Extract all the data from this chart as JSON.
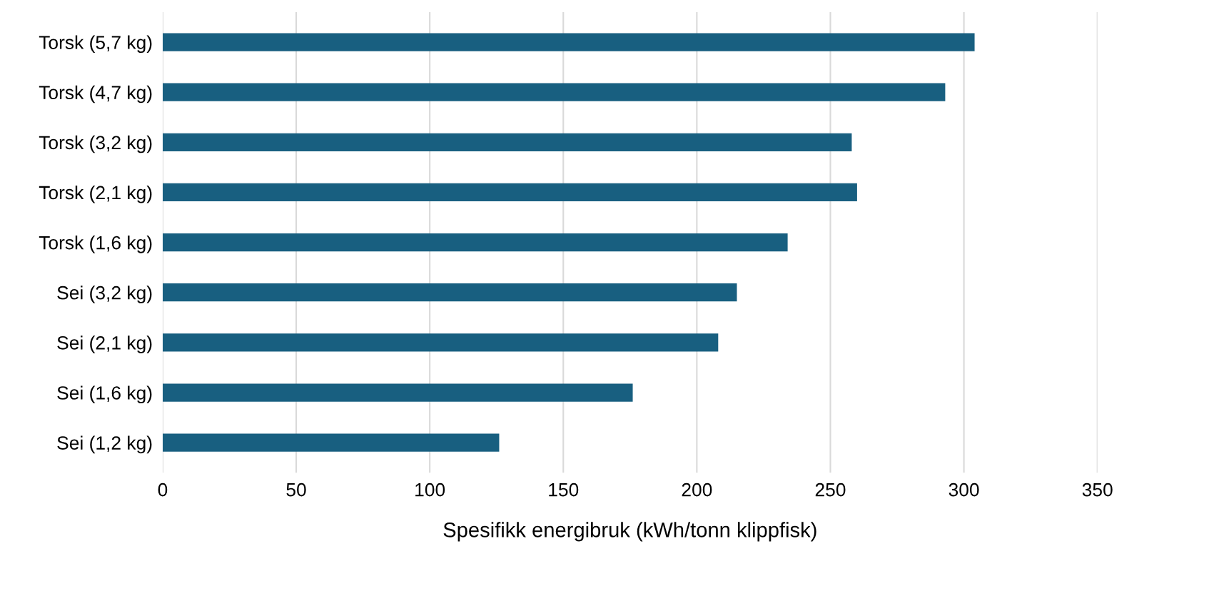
{
  "chart_data": {
    "type": "bar",
    "orientation": "horizontal",
    "xlabel": "Spesifikk energibruk (kWh/tonn klippfisk)",
    "categories": [
      "Torsk (5,7 kg)",
      "Torsk (4,7 kg)",
      "Torsk (3,2 kg)",
      "Torsk (2,1 kg)",
      "Torsk (1,6 kg)",
      "Sei (3,2 kg)",
      "Sei (2,1 kg)",
      "Sei (1,6 kg)",
      "Sei (1,2 kg)"
    ],
    "values": [
      304,
      293,
      258,
      260,
      234,
      215,
      208,
      176,
      126
    ],
    "color": "#185f80",
    "xlim": [
      0,
      350
    ],
    "xticks": [
      0,
      50,
      100,
      150,
      200,
      250,
      300,
      350
    ],
    "grid": "x"
  }
}
